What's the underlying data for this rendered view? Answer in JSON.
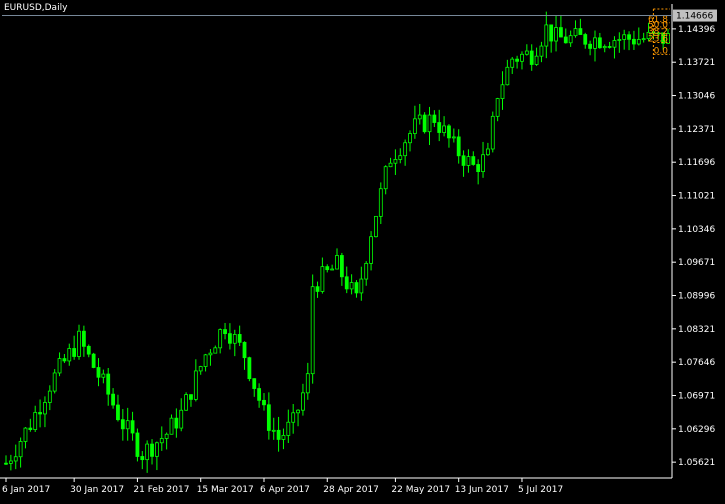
{
  "window": {
    "symbol_title": "EURUSD,Daily"
  },
  "colors": {
    "background": "#000000",
    "candle": "#00ff00",
    "axis": "#ffffff",
    "fib": "#ff9900",
    "bid_line": "#778899",
    "current_price_box": "#c0c0c0"
  },
  "price_axis": {
    "current_price": "1.14666",
    "ticks": [
      "1.14396",
      "1.13721",
      "1.13046",
      "1.12371",
      "1.11696",
      "1.11021",
      "1.10346",
      "1.09671",
      "1.08996",
      "1.08321",
      "1.07646",
      "1.06971",
      "1.06296",
      "1.05621"
    ]
  },
  "time_axis": {
    "ticks": [
      "6 Jan 2017",
      "30 Jan 2017",
      "21 Feb 2017",
      "15 Mar 2017",
      "6 Apr 2017",
      "28 Apr 2017",
      "22 May 2017",
      "13 Jun 2017",
      "5 Jul 2017"
    ]
  },
  "fibonacci": {
    "levels": [
      {
        "label": "61.8",
        "value": 1.1452
      },
      {
        "label": "50.0",
        "value": 1.144
      },
      {
        "label": "38.2",
        "value": 1.1427
      },
      {
        "label": "23.6",
        "value": 1.1412
      },
      {
        "label": "0.0",
        "value": 1.1388
      }
    ],
    "top_value": 1.148
  },
  "chart_data": {
    "type": "candlestick",
    "ylim": [
      1.053,
      1.149
    ],
    "x_range": [
      0,
      136
    ],
    "x_ticks": [
      0,
      14,
      27,
      40,
      53,
      66,
      80,
      93,
      106
    ],
    "grid": false,
    "close_anchors": [
      [
        0,
        1.056
      ],
      [
        5,
        1.064
      ],
      [
        9,
        1.072
      ],
      [
        15,
        1.081
      ],
      [
        20,
        1.072
      ],
      [
        24,
        1.064
      ],
      [
        28,
        1.058
      ],
      [
        33,
        1.062
      ],
      [
        36,
        1.066
      ],
      [
        41,
        1.078
      ],
      [
        45,
        1.084
      ],
      [
        49,
        1.078
      ],
      [
        53,
        1.066
      ],
      [
        56,
        1.061
      ],
      [
        59,
        1.064
      ],
      [
        62,
        1.073
      ],
      [
        63,
        1.092
      ],
      [
        68,
        1.096
      ],
      [
        72,
        1.089
      ],
      [
        75,
        1.103
      ],
      [
        79,
        1.118
      ],
      [
        84,
        1.124
      ],
      [
        88,
        1.126
      ],
      [
        92,
        1.12
      ],
      [
        96,
        1.116
      ],
      [
        99,
        1.118
      ],
      [
        101,
        1.131
      ],
      [
        104,
        1.138
      ],
      [
        108,
        1.139
      ],
      [
        111,
        1.144
      ],
      [
        113,
        1.142
      ]
    ]
  }
}
